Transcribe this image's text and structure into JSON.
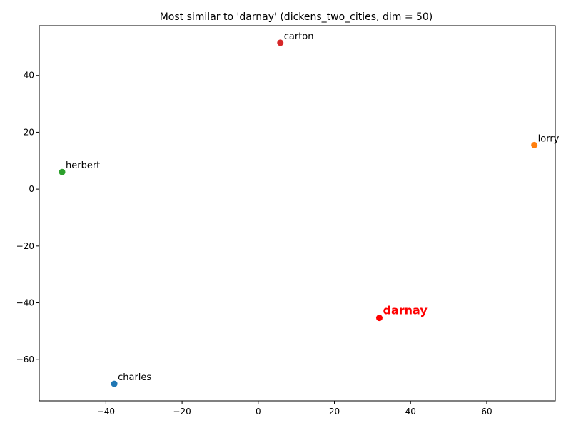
{
  "chart_data": {
    "type": "scatter",
    "title": "Most similar to 'darnay' (dickens_two_cities, dim = 50)",
    "xlabel": "",
    "ylabel": "",
    "xlim": [
      -57.5,
      78
    ],
    "ylim": [
      -74.5,
      57.5
    ],
    "xticks": [
      -40,
      -20,
      0,
      20,
      40,
      60
    ],
    "yticks": [
      -60,
      -40,
      -20,
      0,
      20,
      40
    ],
    "xtick_labels": [
      "−40",
      "−20",
      "0",
      "20",
      "40",
      "60"
    ],
    "ytick_labels": [
      "−60",
      "−40",
      "−20",
      "0",
      "20",
      "40"
    ],
    "grid": false,
    "points": [
      {
        "label": "charles",
        "x": -37.8,
        "y": -68.5,
        "color": "#1f77b4",
        "highlight": false
      },
      {
        "label": "lorry",
        "x": 72.5,
        "y": 15.5,
        "color": "#ff7f0e",
        "highlight": false
      },
      {
        "label": "herbert",
        "x": -51.5,
        "y": 6.0,
        "color": "#2ca02c",
        "highlight": false
      },
      {
        "label": "carton",
        "x": 5.8,
        "y": 51.5,
        "color": "#d62728",
        "highlight": false
      },
      {
        "label": "darnay",
        "x": 31.8,
        "y": -45.3,
        "color": "#ff0000",
        "highlight": true
      }
    ]
  }
}
